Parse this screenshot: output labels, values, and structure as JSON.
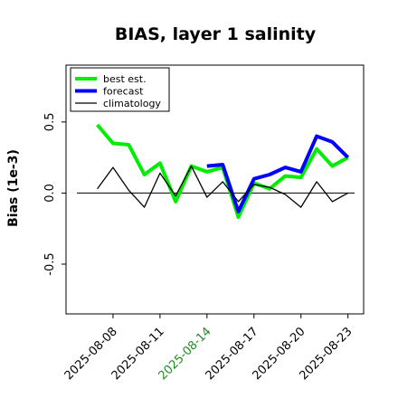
{
  "chart_data": {
    "type": "line",
    "title": "BIAS, layer 1 salinity",
    "xlabel": "",
    "ylabel": "Bias (1e-3)",
    "x": [
      "2025-08-07",
      "2025-08-08",
      "2025-08-09",
      "2025-08-10",
      "2025-08-11",
      "2025-08-12",
      "2025-08-13",
      "2025-08-14",
      "2025-08-15",
      "2025-08-16",
      "2025-08-17",
      "2025-08-18",
      "2025-08-19",
      "2025-08-20",
      "2025-08-21",
      "2025-08-22",
      "2025-08-23"
    ],
    "xlim": [
      "2025-08-05",
      "2025-08-24"
    ],
    "ylim": [
      -0.85,
      0.9
    ],
    "x_ticks": [
      "2025-08-08",
      "2025-08-11",
      "2025-08-14",
      "2025-08-17",
      "2025-08-20",
      "2025-08-23"
    ],
    "highlighted_tick": "2025-08-14",
    "y_ticks": [
      {
        "value": -0.5,
        "label": "-0.5"
      },
      {
        "value": 0.0,
        "label": "0.0"
      },
      {
        "value": 0.5,
        "label": "0.5"
      }
    ],
    "zero_line": true,
    "grid": false,
    "legend_position": "top-left",
    "series": [
      {
        "name": "best est.",
        "color": "#00ee00",
        "values": [
          0.48,
          0.35,
          0.34,
          0.13,
          0.21,
          -0.06,
          0.19,
          0.15,
          0.18,
          -0.17,
          0.07,
          0.03,
          0.12,
          0.11,
          0.31,
          0.19,
          0.25
        ]
      },
      {
        "name": "forecast",
        "color": "#0000ff",
        "values": [
          null,
          null,
          null,
          null,
          null,
          null,
          null,
          0.19,
          0.2,
          -0.13,
          0.1,
          0.13,
          0.18,
          0.15,
          0.4,
          0.36,
          0.25
        ]
      },
      {
        "name": "climatology",
        "color": "#000000",
        "values": [
          0.03,
          0.18,
          0.02,
          -0.1,
          0.14,
          -0.02,
          0.19,
          -0.03,
          0.08,
          -0.06,
          0.06,
          0.04,
          -0.01,
          -0.1,
          0.08,
          -0.06,
          0.0
        ]
      }
    ]
  }
}
